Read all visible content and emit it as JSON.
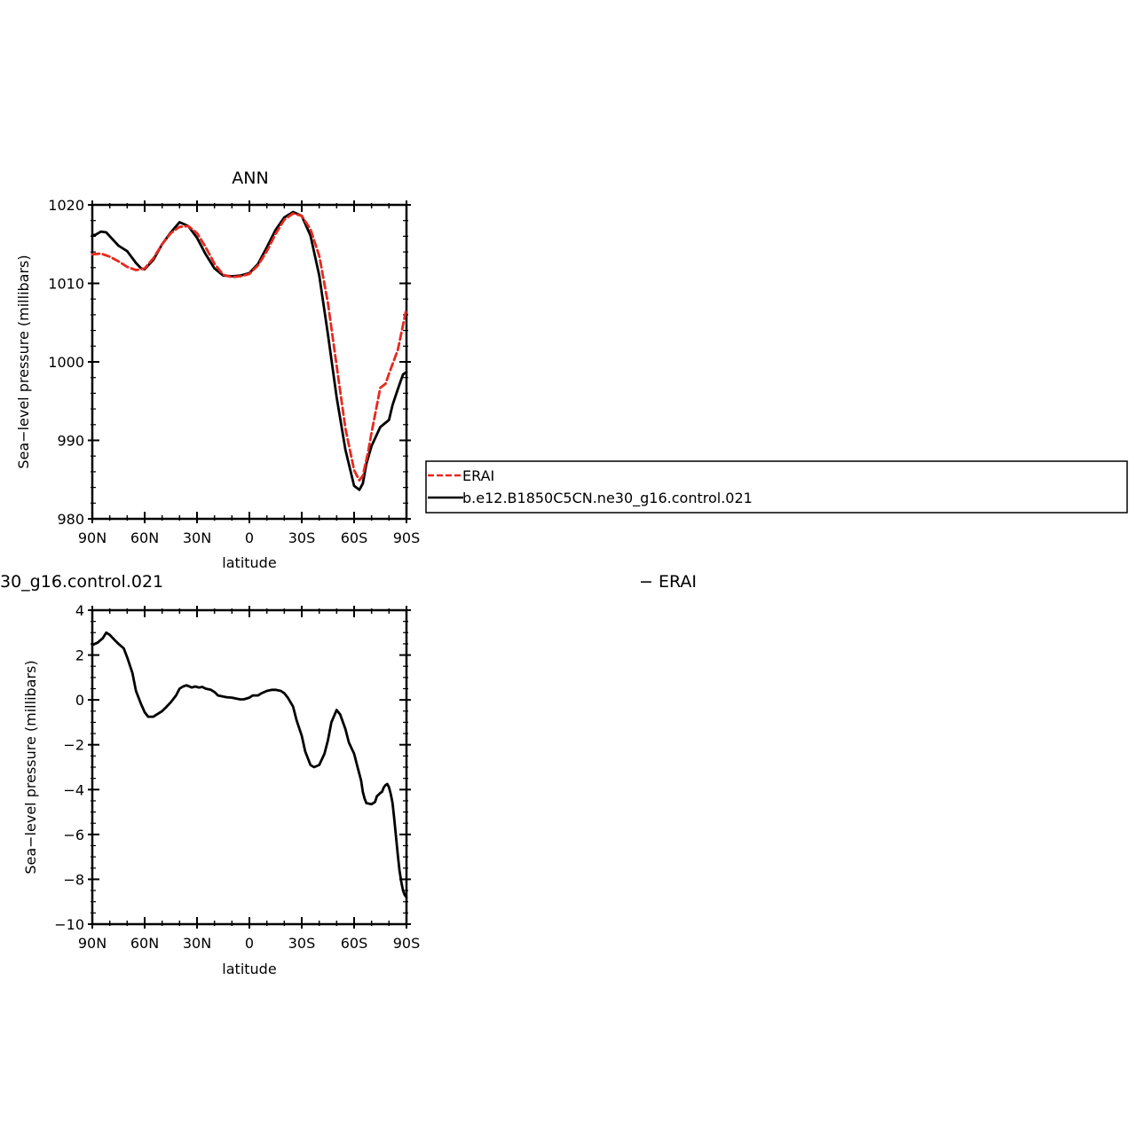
{
  "chart_data": [
    {
      "type": "line",
      "title": "ANN",
      "xlabel": "latitude",
      "ylabel": "Sea−level pressure (millibars)",
      "x_tick_labels": [
        "90N",
        "60N",
        "30N",
        "0",
        "30S",
        "60S",
        "90S"
      ],
      "x_tick_values": [
        90,
        60,
        30,
        0,
        -30,
        -60,
        -90
      ],
      "y_tick_labels": [
        "1020",
        "1010",
        "1000",
        "990",
        "980"
      ],
      "y_tick_values": [
        1020,
        1010,
        1000,
        990,
        980
      ],
      "xlim": [
        90,
        -90
      ],
      "ylim": [
        980,
        1020
      ],
      "legend_position": "right",
      "series": [
        {
          "name": "ERAI",
          "color": "#e8281e",
          "dash": "dashed",
          "x": [
            90,
            85,
            80,
            75,
            70,
            65,
            60,
            55,
            50,
            45,
            40,
            35,
            30,
            25,
            20,
            15,
            10,
            5,
            0,
            -5,
            -10,
            -15,
            -20,
            -25,
            -30,
            -35,
            -40,
            -45,
            -50,
            -55,
            -60,
            -63,
            -65,
            -68,
            -70,
            -75,
            -78,
            -80,
            -85,
            -90
          ],
          "values": [
            1013.7,
            1013.8,
            1013.4,
            1012.8,
            1012.1,
            1011.7,
            1011.9,
            1013.2,
            1015.0,
            1016.4,
            1017.2,
            1017.3,
            1016.4,
            1014.6,
            1012.5,
            1011.1,
            1010.8,
            1010.9,
            1011.2,
            1012.3,
            1014.1,
            1016.3,
            1018.1,
            1018.9,
            1018.6,
            1016.9,
            1013.5,
            1007.5,
            999.5,
            991.5,
            986.2,
            984.9,
            985.5,
            988.5,
            991.0,
            996.7,
            997.2,
            998.5,
            1001.5,
            1006.8
          ]
        },
        {
          "name": "b.e12.B1850C5CN.ne30_g16.control.021",
          "color": "#000000",
          "dash": "solid",
          "x": [
            90,
            88,
            85,
            82,
            80,
            75,
            70,
            65,
            62,
            60,
            55,
            50,
            45,
            40,
            35,
            30,
            25,
            20,
            15,
            10,
            5,
            0,
            -5,
            -10,
            -15,
            -20,
            -25,
            -30,
            -35,
            -40,
            -45,
            -50,
            -55,
            -60,
            -63,
            -65,
            -67,
            -70,
            -75,
            -80,
            -82,
            -85,
            -88,
            -90
          ],
          "values": [
            1016.1,
            1016.2,
            1016.6,
            1016.5,
            1016.0,
            1014.8,
            1014.1,
            1012.6,
            1011.9,
            1011.8,
            1013.0,
            1015.0,
            1016.5,
            1017.8,
            1017.3,
            1015.8,
            1013.7,
            1011.9,
            1011.0,
            1010.9,
            1011.0,
            1011.3,
            1012.5,
            1014.6,
            1016.8,
            1018.4,
            1019.1,
            1018.6,
            1016.1,
            1011.0,
            1003.5,
            995.5,
            988.8,
            984.2,
            983.7,
            984.5,
            987.0,
            989.3,
            991.7,
            992.6,
            994.5,
            996.5,
            998.4,
            998.7
          ]
        }
      ]
    },
    {
      "type": "line",
      "title": "30_g16.control.021",
      "title_right": "− ERAI",
      "xlabel": "latitude",
      "ylabel": "Sea−level pressure (millibars)",
      "x_tick_labels": [
        "90N",
        "60N",
        "30N",
        "0",
        "30S",
        "60S",
        "90S"
      ],
      "x_tick_values": [
        90,
        60,
        30,
        0,
        -30,
        -60,
        -90
      ],
      "y_tick_labels": [
        "4",
        "2",
        "0",
        "−2",
        "−4",
        "−6",
        "−8",
        "−10"
      ],
      "y_tick_values": [
        4,
        2,
        0,
        -2,
        -4,
        -6,
        -8,
        -10
      ],
      "xlim": [
        90,
        -90
      ],
      "ylim": [
        -10,
        4
      ],
      "series": [
        {
          "color": "#000000",
          "x": [
            90,
            87,
            84,
            82,
            80,
            77,
            75,
            72,
            70,
            67,
            65,
            62,
            60,
            58,
            55,
            52,
            50,
            48,
            45,
            42,
            40,
            38,
            36,
            33,
            31,
            29,
            27,
            25,
            22,
            20,
            18,
            15,
            13,
            10,
            7,
            5,
            3,
            0,
            -2,
            -5,
            -7,
            -10,
            -13,
            -15,
            -18,
            -20,
            -22,
            -25,
            -27,
            -30,
            -32,
            -35,
            -37,
            -40,
            -43,
            -45,
            -47,
            -50,
            -52,
            -55,
            -57,
            -60,
            -62,
            -64,
            -65,
            -66,
            -67,
            -70,
            -72,
            -73,
            -75,
            -76,
            -77,
            -78,
            -79,
            -80,
            -81,
            -82,
            -83,
            -84,
            -85,
            -86,
            -87,
            -88,
            -89,
            -90
          ],
          "values": [
            2.45,
            2.55,
            2.75,
            3.0,
            2.9,
            2.65,
            2.5,
            2.3,
            1.9,
            1.2,
            0.4,
            -0.2,
            -0.55,
            -0.75,
            -0.75,
            -0.6,
            -0.5,
            -0.35,
            -0.1,
            0.2,
            0.5,
            0.6,
            0.65,
            0.55,
            0.6,
            0.55,
            0.58,
            0.5,
            0.45,
            0.35,
            0.2,
            0.15,
            0.12,
            0.1,
            0.05,
            0.02,
            0.03,
            0.1,
            0.2,
            0.2,
            0.3,
            0.4,
            0.45,
            0.45,
            0.4,
            0.3,
            0.1,
            -0.3,
            -0.9,
            -1.6,
            -2.3,
            -2.9,
            -3.0,
            -2.9,
            -2.4,
            -1.8,
            -1.0,
            -0.45,
            -0.65,
            -1.3,
            -1.9,
            -2.4,
            -3.0,
            -3.6,
            -4.1,
            -4.4,
            -4.6,
            -4.65,
            -4.55,
            -4.3,
            -4.15,
            -4.1,
            -3.9,
            -3.8,
            -3.75,
            -3.9,
            -4.2,
            -4.6,
            -5.3,
            -6.1,
            -6.9,
            -7.6,
            -8.1,
            -8.5,
            -8.7,
            -8.8
          ]
        }
      ]
    }
  ]
}
